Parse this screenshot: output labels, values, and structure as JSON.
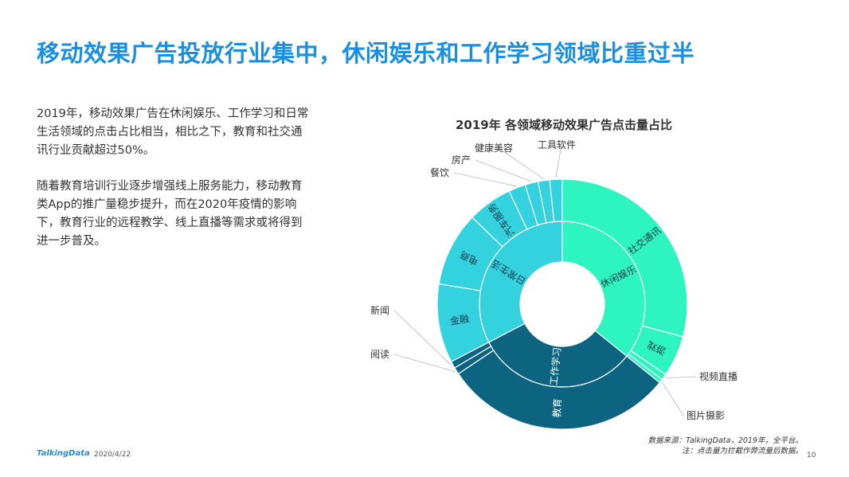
{
  "page": {
    "title": "移动效果广告投放行业集中，休闲娱乐和工作学习领域比重过半",
    "paragraphs": [
      "2019年，移动效果广告在休闲娱乐、工作学习和日常生活领域的点击占比相当，相比之下，教育和社交通讯行业贡献超过50%。",
      "随着教育培训行业逐步增强线上服务能力，移动教育类App的推广量稳步提升，而在2020年疫情的影响下，教育行业的远程教学、线上直播等需求或将得到进一步普及。"
    ],
    "footer": {
      "logo": "TalkingData",
      "date": "2020/4/22",
      "source_line1": "数据来源：TalkingData，2019年，全平台。",
      "source_line2": "注：点击量为拦截作弊流量后数据。",
      "page_number": "10"
    }
  },
  "chart_data": {
    "type": "sunburst",
    "title": "2019年  各领域移动效果广告点击量占比",
    "start_angle_deg": 0,
    "direction": "clockwise",
    "inner": [
      {
        "name": "休闲娱乐",
        "value": 35.8,
        "color": "#2ef5c0"
      },
      {
        "name": "工作学习",
        "value": 31.6,
        "color": "#0c6480"
      },
      {
        "name": "日常生活",
        "value": 32.6,
        "color": "#33d2de"
      }
    ],
    "outer": [
      {
        "name": "社交通讯",
        "parent": "休闲娱乐",
        "value": 29.2,
        "color": "#2ef5c0",
        "label_inside": true
      },
      {
        "name": "游戏",
        "parent": "休闲娱乐",
        "value": 5.3,
        "color": "#2ef5c0",
        "label_inside": true
      },
      {
        "name": "视频直播",
        "parent": "休闲娱乐",
        "value": 0.8,
        "color": "#2ef5c0",
        "label_inside": false
      },
      {
        "name": "图片摄影",
        "parent": "休闲娱乐",
        "value": 0.5,
        "color": "#2ef5c0",
        "label_inside": false
      },
      {
        "name": "教育",
        "parent": "工作学习",
        "value": 29.8,
        "color": "#0c6480",
        "label_inside": true
      },
      {
        "name": "阅读",
        "parent": "工作学习",
        "value": 0.9,
        "color": "#0c6480",
        "label_inside": false
      },
      {
        "name": "新闻",
        "parent": "工作学习",
        "value": 0.9,
        "color": "#0c6480",
        "label_inside": false
      },
      {
        "name": "金融",
        "parent": "日常生活",
        "value": 10.2,
        "color": "#33d2de",
        "label_inside": true
      },
      {
        "name": "电商",
        "parent": "日常生活",
        "value": 9.6,
        "color": "#33d2de",
        "label_inside": true
      },
      {
        "name": "汽车服务",
        "parent": "日常生活",
        "value": 5.8,
        "color": "#33d2de",
        "label_inside": true
      },
      {
        "name": "餐饮",
        "parent": "日常生活",
        "value": 2.2,
        "color": "#33d2de",
        "label_inside": false
      },
      {
        "name": "房产",
        "parent": "日常生活",
        "value": 1.7,
        "color": "#33d2de",
        "label_inside": false
      },
      {
        "name": "健康美容",
        "parent": "日常生活",
        "value": 1.5,
        "color": "#33d2de",
        "label_inside": false
      },
      {
        "name": "工具软件",
        "parent": "日常生活",
        "value": 1.6,
        "color": "#33d2de",
        "label_inside": false
      }
    ]
  }
}
